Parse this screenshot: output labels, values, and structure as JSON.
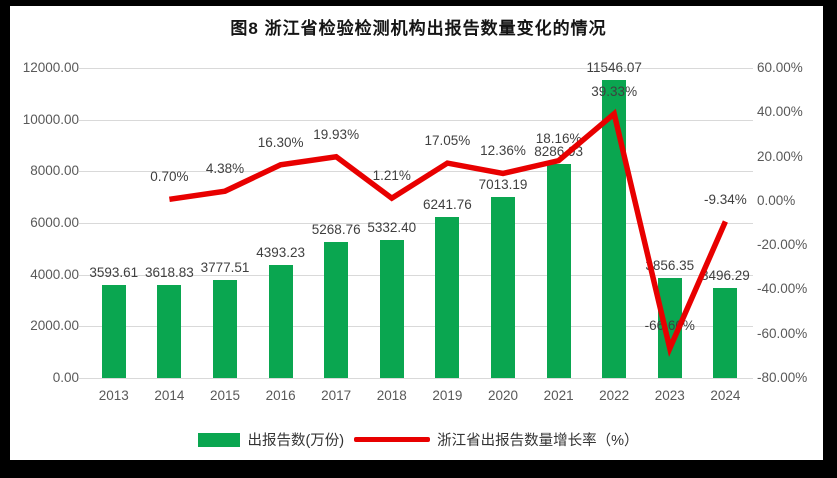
{
  "chart_data": {
    "type": "combo_bar_line",
    "title": "图8 浙江省检验检测机构出报告数量变化的情况",
    "categories": [
      "2013",
      "2014",
      "2015",
      "2016",
      "2017",
      "2018",
      "2019",
      "2020",
      "2021",
      "2022",
      "2023",
      "2024"
    ],
    "bar_series": {
      "name": "出报告数(万份)",
      "color": "#0aa650",
      "values": [
        3593.61,
        3618.83,
        3777.51,
        4393.23,
        5268.76,
        5332.4,
        6241.76,
        7013.19,
        8286.93,
        11546.07,
        3856.35,
        3496.29
      ],
      "labels": [
        "3593.61",
        "3618.83",
        "3777.51",
        "4393.23",
        "5268.76",
        "5332.40",
        "6241.76",
        "7013.19",
        "8286.93",
        "11546.07",
        "3856.35",
        "3496.29"
      ]
    },
    "line_series": {
      "name": "浙江省出报告数量增长率（%）",
      "color": "#e80000",
      "values": [
        null,
        0.7,
        4.38,
        16.3,
        19.93,
        1.21,
        17.05,
        12.36,
        18.16,
        39.33,
        -66.6,
        -9.34
      ],
      "labels": [
        "",
        "0.70%",
        "4.38%",
        "16.30%",
        "19.93%",
        "1.21%",
        "17.05%",
        "12.36%",
        "18.16%",
        "39.33%",
        "-66.60%",
        "-9.34%"
      ]
    },
    "left_axis": {
      "min": 0,
      "max": 12000,
      "step": 2000,
      "tick_labels": [
        "0.00",
        "2000.00",
        "4000.00",
        "6000.00",
        "8000.00",
        "10000.00",
        "12000.00"
      ]
    },
    "right_axis": {
      "min": -80,
      "max": 60,
      "step": 20,
      "tick_labels": [
        "-80.00%",
        "-60.00%",
        "-40.00%",
        "-20.00%",
        "0.00%",
        "20.00%",
        "40.00%",
        "60.00%"
      ]
    },
    "grid": true,
    "legend_position": "bottom",
    "gridline_color": "#d9d9d9"
  }
}
